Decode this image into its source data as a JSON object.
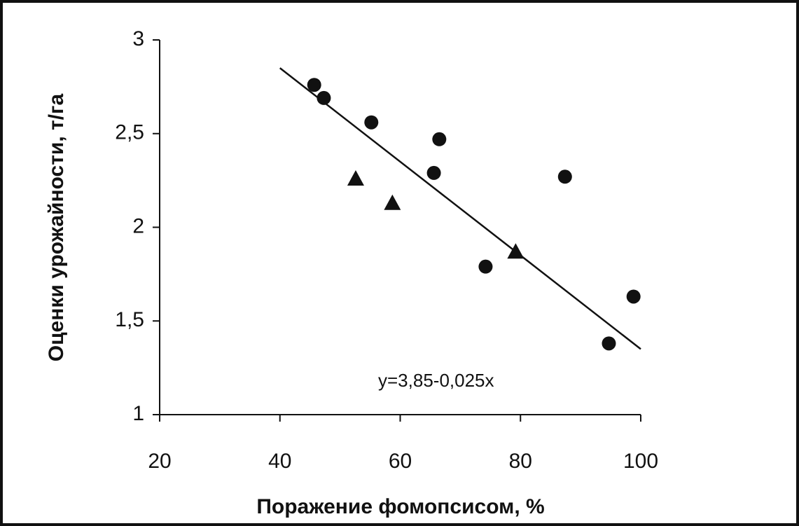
{
  "chart_data": {
    "type": "scatter",
    "x_label": "Поражение фомопсисом, %",
    "y_label": "Оценки урожайности, т/га",
    "annotation": "y=3,85-0,025x",
    "xlim": [
      20,
      100
    ],
    "xticks": [
      20,
      40,
      60,
      80,
      100
    ],
    "ylim": [
      1,
      3
    ],
    "yticks": [
      1,
      {
        "value": 1.5,
        "label": "1,5"
      },
      2,
      {
        "value": 2.5,
        "label": "2,5"
      },
      3
    ],
    "grid": false,
    "series": [
      {
        "marker": "circle",
        "color": "#111111",
        "x": [
          45.7,
          47.3,
          55.2,
          66.5,
          65.6,
          87.4,
          74.2,
          98.8,
          94.7
        ],
        "values": [
          2.76,
          2.69,
          2.56,
          2.47,
          2.29,
          2.27,
          1.79,
          1.63,
          1.38
        ]
      },
      {
        "marker": "triangle",
        "color": "#111111",
        "x": [
          52.6,
          58.7,
          79.2
        ],
        "values": [
          2.26,
          2.13,
          1.87
        ]
      }
    ],
    "trendline": {
      "x": [
        40,
        100
      ],
      "values": [
        2.85,
        1.35
      ],
      "color": "#111111"
    }
  }
}
